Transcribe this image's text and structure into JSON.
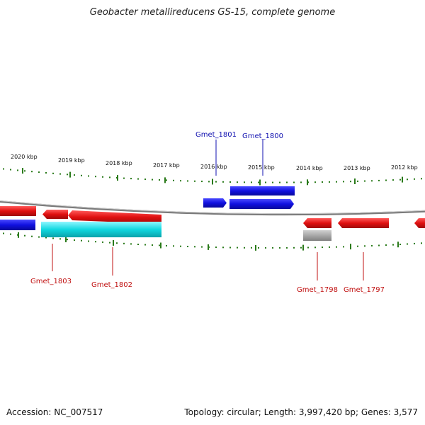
{
  "title": "Geobacter metallireducens GS-15, complete genome",
  "footer": {
    "accession": "Accession: NC_007517",
    "stats": "Topology: circular; Length: 3,997,420 bp; Genes: 3,577"
  },
  "colors": {
    "backbone": "#7a7a7a",
    "tick": "#2a7a1a",
    "forward_strand": "#1010e0",
    "reverse_strand": "#e01010",
    "cyan_feature": "#10d8e0",
    "grey_feature": "#a8a8a8",
    "label_forward": "#1010b0",
    "label_reverse": "#c01010"
  },
  "scale_labels": [
    "2020 kbp",
    "2019 kbp",
    "2018 kbp",
    "2017 kbp",
    "2016 kbp",
    "2015 kbp",
    "2014 kbp",
    "2013 kbp",
    "2012 kbp"
  ],
  "gene_labels": [
    {
      "name": "Gmet_1801",
      "strand": "forward"
    },
    {
      "name": "Gmet_1800",
      "strand": "forward"
    },
    {
      "name": "Gmet_1803",
      "strand": "reverse"
    },
    {
      "name": "Gmet_1802",
      "strand": "reverse"
    },
    {
      "name": "Gmet_1798",
      "strand": "reverse"
    },
    {
      "name": "Gmet_1797",
      "strand": "reverse"
    }
  ]
}
